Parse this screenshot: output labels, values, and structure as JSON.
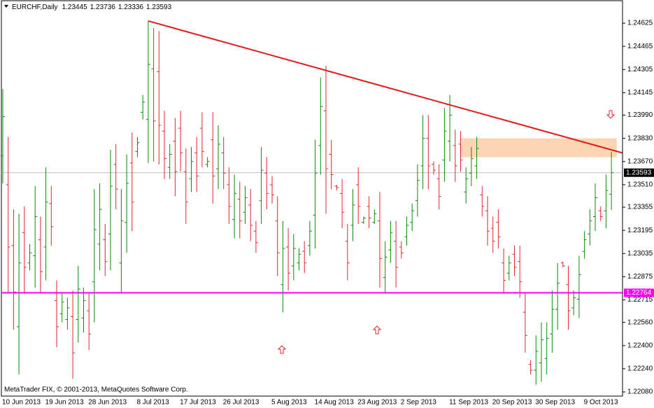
{
  "chart_data": {
    "type": "ohlc",
    "title": "EURCHF,Daily",
    "footer": "MetaTrader FIX, © 2001-2013, MetaQuotes Software Corp.",
    "categories": [
      "10 Jun 2013",
      null,
      null,
      null,
      null,
      null,
      null,
      null,
      "19 Jun 2013",
      null,
      null,
      null,
      null,
      null,
      null,
      null,
      "28 Jun 2013",
      null,
      null,
      null,
      null,
      null,
      null,
      null,
      null,
      "8 Jul 2013",
      null,
      null,
      null,
      null,
      null,
      null,
      null,
      "17 Jul 2013",
      null,
      null,
      null,
      null,
      null,
      null,
      null,
      "26 Jul 2013",
      null,
      null,
      null,
      null,
      null,
      null,
      null,
      null,
      "5 Aug 2013",
      null,
      null,
      null,
      null,
      null,
      null,
      null,
      "14 Aug 2013",
      null,
      null,
      null,
      null,
      null,
      null,
      null,
      "23 Aug 2013",
      null,
      null,
      null,
      null,
      null,
      null,
      null,
      "2 Sep 2013",
      null,
      null,
      null,
      null,
      null,
      null,
      null,
      null,
      "11 Sep 2013",
      null,
      null,
      null,
      null,
      null,
      null,
      null,
      "20 Sep 2013",
      null,
      null,
      null,
      null,
      null,
      null,
      null,
      "30 Sep 2013",
      null,
      null,
      null,
      null,
      null,
      null,
      null,
      null,
      "9 Oct 2013",
      null,
      null,
      null,
      null,
      null
    ],
    "open": [
      1.2371,
      1.2351,
      1.2309,
      1.2253,
      1.2318,
      1.2297,
      1.2302,
      1.2313,
      1.2308,
      1.2338,
      1.2271,
      1.2262,
      1.2258,
      1.226,
      1.2258,
      1.2259,
      1.2264,
      1.2284,
      1.231,
      1.2313,
      1.2317,
      1.2365,
      1.2297,
      1.2325,
      1.2366,
      1.2374,
      1.2401,
      1.2396,
      1.2431,
      1.2429,
      1.2388,
      1.2363,
      1.2381,
      1.239,
      1.236,
      1.2355,
      1.2373,
      1.239,
      1.2365,
      1.2382,
      1.2362,
      1.2373,
      1.2351,
      1.2327,
      1.2341,
      1.2332,
      1.2337,
      1.2319,
      1.234,
      1.2359,
      1.2351,
      1.2326,
      1.2282,
      1.2308,
      1.2295,
      1.2297,
      1.2305,
      1.2309,
      1.233,
      1.2378,
      1.2402,
      1.2372,
      1.235,
      1.2345,
      1.2312,
      1.2323,
      1.2351,
      1.2325,
      1.2336,
      1.2325,
      1.2326,
      1.2287,
      1.2306,
      1.2312,
      1.2308,
      1.2315,
      1.2325,
      1.234,
      1.2364,
      1.2383,
      1.2365,
      1.2355,
      1.2368,
      1.2381,
      1.2378,
      1.2379,
      1.2346,
      1.2359,
      1.2364,
      1.2344,
      1.2333,
      1.2321,
      1.2325,
      1.2297,
      1.229,
      1.2303,
      1.2298,
      1.2263,
      1.2227,
      1.2223,
      1.2228,
      1.2231,
      1.2248,
      1.2265,
      1.2297,
      1.2282,
      1.2266,
      1.2272,
      1.2305,
      1.2317,
      1.2329,
      1.2333,
      1.2333,
      1.23445
    ],
    "high": [
      1.2417,
      1.2384,
      1.2334,
      1.2331,
      1.2336,
      1.231,
      1.235,
      1.2329,
      1.2363,
      1.235,
      1.2285,
      1.2276,
      1.2273,
      1.2278,
      1.2295,
      1.228,
      1.2276,
      1.2348,
      1.2352,
      1.2324,
      1.2375,
      1.2379,
      1.2348,
      1.2372,
      1.2387,
      1.2384,
      1.2413,
      1.2464,
      1.2459,
      1.2457,
      1.2402,
      1.2379,
      1.2397,
      1.2402,
      1.2376,
      1.2377,
      1.2384,
      1.2401,
      1.237,
      1.2401,
      1.2392,
      1.2384,
      1.2363,
      1.2358,
      1.2353,
      1.235,
      1.2348,
      1.2326,
      1.2377,
      1.237,
      1.2357,
      1.2343,
      1.2326,
      1.2321,
      1.2317,
      1.2307,
      1.2312,
      1.2326,
      1.2382,
      1.2425,
      1.2433,
      1.2382,
      1.2351,
      1.2355,
      1.2324,
      1.2348,
      1.2363,
      1.2329,
      1.2343,
      1.2334,
      1.2346,
      1.2312,
      1.2326,
      1.2326,
      1.2312,
      1.2329,
      1.2338,
      1.2365,
      1.2399,
      1.2399,
      1.2367,
      1.2365,
      1.2404,
      1.2413,
      1.2389,
      1.2388,
      1.2363,
      1.2377,
      1.2384,
      1.235,
      1.2343,
      1.2329,
      1.2334,
      1.2307,
      1.2302,
      1.2309,
      1.2309,
      1.2276,
      1.223,
      1.2247,
      1.2256,
      1.2256,
      1.2278,
      1.2297,
      1.2298,
      1.2295,
      1.2278,
      1.2302,
      1.2319,
      1.2334,
      1.2352,
      1.2336,
      1.2358,
      1.23736
    ],
    "low": [
      1.2352,
      1.2276,
      1.2251,
      1.222,
      1.2276,
      1.2292,
      1.228,
      1.2276,
      1.2285,
      1.2309,
      1.2239,
      1.2256,
      1.2251,
      1.2217,
      1.2242,
      1.2249,
      1.2237,
      1.2256,
      1.2292,
      1.2288,
      1.2292,
      1.2334,
      1.2276,
      1.2304,
      1.2319,
      1.237,
      1.2396,
      1.2366,
      1.2367,
      1.2365,
      1.2355,
      1.2355,
      1.2343,
      1.236,
      1.2324,
      1.2346,
      1.2346,
      1.2363,
      1.2363,
      1.2338,
      1.2348,
      1.2348,
      1.2324,
      1.2314,
      1.2314,
      1.2324,
      1.2312,
      1.2304,
      1.2324,
      1.2334,
      1.2338,
      1.2288,
      1.2263,
      1.2278,
      1.2285,
      1.2292,
      1.229,
      1.2302,
      1.2307,
      1.2358,
      1.2331,
      1.2348,
      1.2347,
      1.2321,
      1.2285,
      1.2312,
      1.2324,
      1.2324,
      1.2321,
      1.2324,
      1.228,
      1.2276,
      1.2297,
      1.228,
      1.23,
      1.2309,
      1.2319,
      1.2329,
      1.2348,
      1.2348,
      1.2358,
      1.2334,
      1.2353,
      1.2367,
      1.2353,
      1.236,
      1.2338,
      1.235,
      1.2355,
      1.2329,
      1.2309,
      1.2304,
      1.2307,
      1.2276,
      1.2285,
      1.2288,
      1.2273,
      1.2235,
      1.222,
      1.2213,
      1.2215,
      1.222,
      1.2235,
      1.2251,
      1.2294,
      1.2251,
      1.2261,
      1.2259,
      1.23,
      1.2309,
      1.2319,
      1.2326,
      1.2321,
      1.23336
    ],
    "close": [
      1.2398,
      1.2308,
      1.2277,
      1.2297,
      1.2294,
      1.2304,
      1.2329,
      1.2291,
      1.2339,
      1.2322,
      1.2253,
      1.227,
      1.2266,
      1.2235,
      1.2279,
      1.2271,
      1.2248,
      1.232,
      1.2334,
      1.2298,
      1.235,
      1.2348,
      1.2326,
      1.2352,
      1.2339,
      1.238,
      1.2408,
      1.2434,
      1.2395,
      1.2392,
      1.2369,
      1.2372,
      1.236,
      1.2373,
      1.2339,
      1.2367,
      1.2357,
      1.2374,
      1.2367,
      1.2357,
      1.2379,
      1.2359,
      1.2336,
      1.2345,
      1.2326,
      1.2342,
      1.2323,
      1.2311,
      1.2361,
      1.2345,
      1.2344,
      1.2304,
      1.2307,
      1.229,
      1.2307,
      1.2303,
      1.2297,
      1.2319,
      1.2359,
      1.2405,
      1.2362,
      1.2358,
      1.2349,
      1.2332,
      1.2297,
      1.2337,
      1.2336,
      1.2328,
      1.2328,
      1.2331,
      1.23,
      1.2301,
      1.2318,
      1.2294,
      1.2304,
      1.2323,
      1.2333,
      1.2354,
      1.2383,
      1.2364,
      1.2361,
      1.2343,
      1.2388,
      1.2399,
      1.2364,
      1.2368,
      1.2355,
      1.2369,
      1.2376,
      1.2336,
      1.2319,
      1.2312,
      1.2315,
      1.2285,
      1.2297,
      1.2294,
      1.2284,
      1.2247,
      1.2223,
      1.2236,
      1.2244,
      1.2245,
      1.2265,
      1.2283,
      1.2295,
      1.2264,
      1.2273,
      1.2289,
      1.2313,
      1.2326,
      1.2342,
      1.2329,
      1.2347,
      1.23593
    ],
    "up_color": "#0b8a0b",
    "down_color": "#e3262e",
    "ylim": [
      1.22056,
      1.24775
    ],
    "yticks": [
      1.24625,
      1.24465,
      1.24305,
      1.24145,
      {
        "value": 1.2399,
        "label": "1.23990"
      },
      {
        "value": 1.2383,
        "label": "1.23830"
      },
      {
        "value": 1.2367,
        "label": "1.23670"
      },
      {
        "value": 1.2351,
        "label": "1.23510"
      },
      1.23355,
      1.23195,
      1.23035,
      1.22875,
      1.22715,
      {
        "value": 1.2256,
        "label": "1.22560"
      },
      {
        "value": 1.224,
        "label": "1.22400"
      },
      {
        "value": 1.2224,
        "label": "1.22240"
      },
      {
        "value": 1.2208,
        "label": "1.22080"
      }
    ],
    "grid": false,
    "hline": {
      "value": 1.22764,
      "color": "#ff00ff"
    },
    "trendline": {
      "x": [
        27,
        115
      ],
      "values": [
        1.2464,
        1.2373
      ],
      "color": "#e31a1a"
    },
    "zone": {
      "x": [
        85,
        114
      ],
      "values": [
        1.2383,
        1.237
      ],
      "color": "#fcd5b4"
    }
  }
}
